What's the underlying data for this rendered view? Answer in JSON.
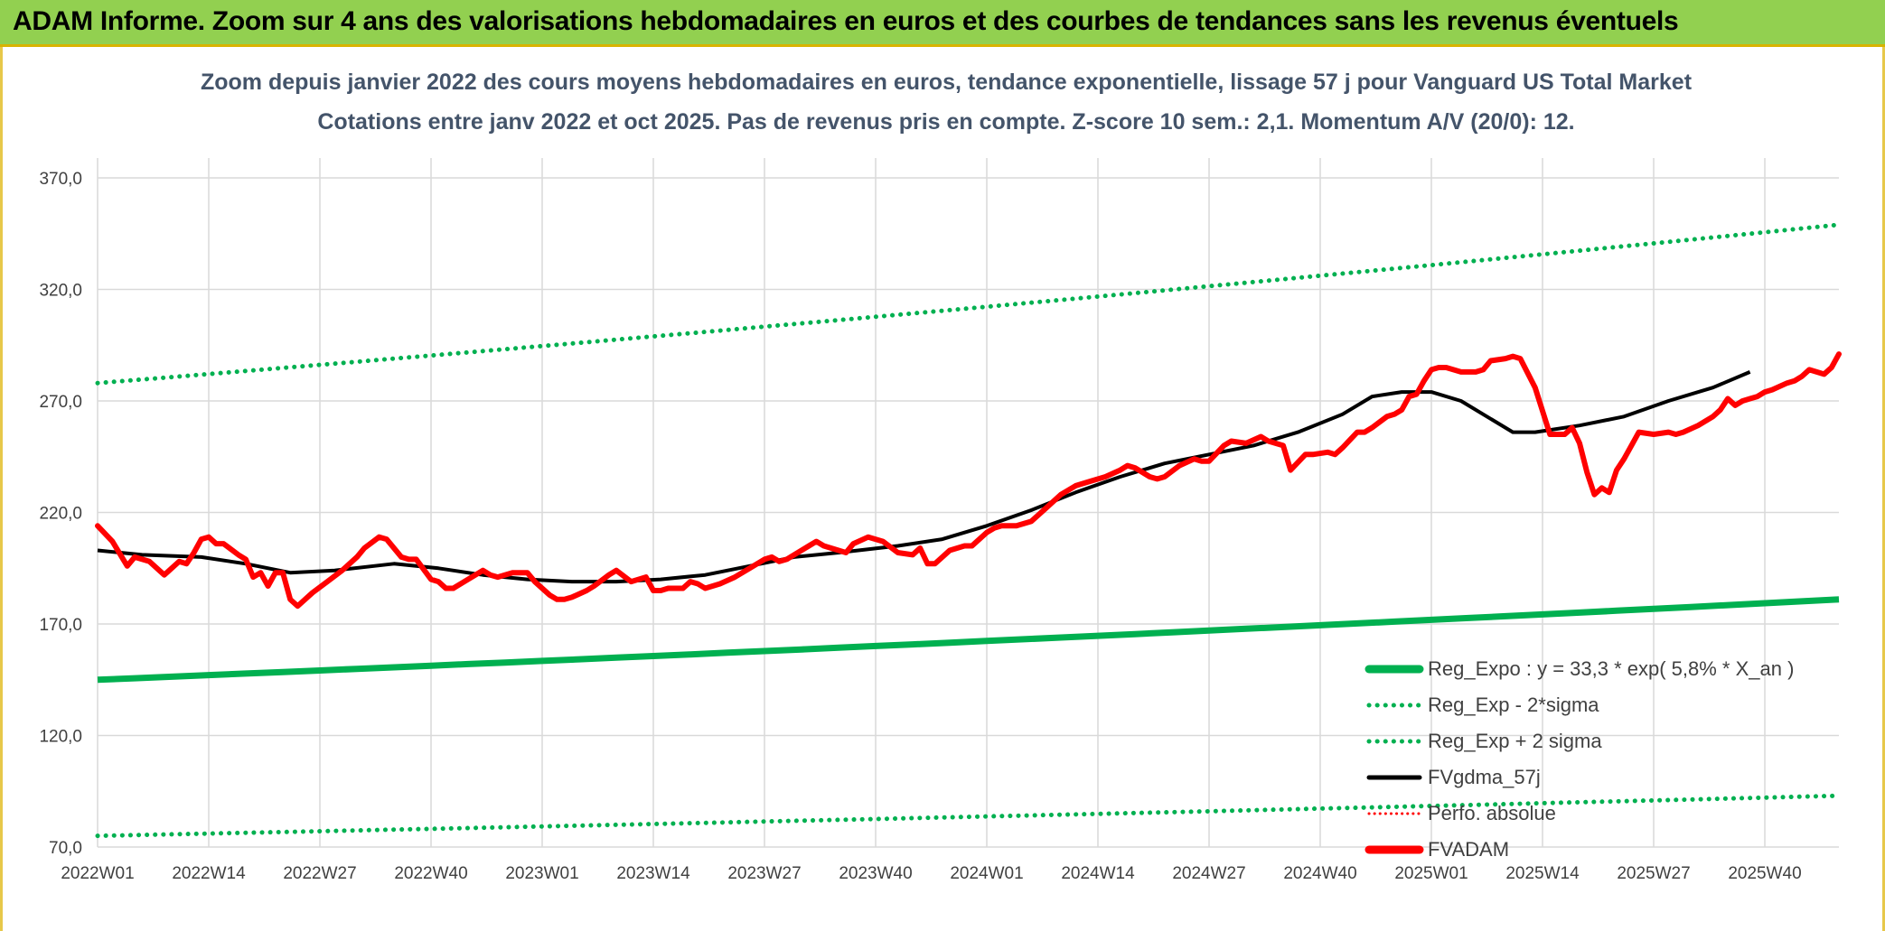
{
  "banner": {
    "text": "ADAM Informe. Zoom sur 4 ans des valorisations hebdomadaires en euros et des courbes de tendances sans les revenus éventuels"
  },
  "colors": {
    "banner_bg": "#92d050",
    "green": "#00b050",
    "red": "#ff0000",
    "black": "#000000",
    "grid": "#d9d9d9"
  },
  "chart_data": {
    "type": "line",
    "title": "Zoom depuis janvier 2022 des cours moyens hebdomadaires en euros, tendance exponentielle, lissage 57 j pour Vanguard US Total Market",
    "subtitle": "Cotations entre janv 2022 et oct 2025. Pas de revenus pris en compte. Z-score 10 sem.: 2,1. Momentum A/V (20/0): 12.",
    "xlabel": "",
    "ylabel": "",
    "ylim": [
      70,
      370
    ],
    "y_ticks": [
      "370,0",
      "320,0",
      "270,0",
      "220,0",
      "170,0",
      "120,0",
      "70,0"
    ],
    "x_ticks": [
      "2022W01",
      "2022W14",
      "2022W27",
      "2022W40",
      "2023W01",
      "2023W14",
      "2023W27",
      "2023W40",
      "2024W01",
      "2024W14",
      "2024W27",
      "2024W40",
      "2025W01",
      "2025W14",
      "2025W27",
      "2025W40"
    ],
    "n_weeks": 197,
    "grid": true,
    "legend_position": "bottom-right",
    "series": [
      {
        "name": "Reg_Expo : y = 33,3 * exp( 5,8% *  X_an )",
        "style": "solid-green-thick",
        "start": 145,
        "end": 181
      },
      {
        "name": "Reg_Exp - 2*sigma",
        "style": "dotted-green",
        "start": 75,
        "end": 93
      },
      {
        "name": "Reg_Exp + 2 sigma",
        "style": "dotted-green",
        "start": 278,
        "end": 349
      },
      {
        "name": "FVgdma_57j",
        "style": "solid-black",
        "points": [
          [
            0,
            203
          ],
          [
            6,
            201
          ],
          [
            14,
            200
          ],
          [
            20,
            197
          ],
          [
            26,
            193
          ],
          [
            32,
            194
          ],
          [
            40,
            197
          ],
          [
            46,
            195
          ],
          [
            52,
            192
          ],
          [
            58,
            190
          ],
          [
            64,
            189
          ],
          [
            70,
            189
          ],
          [
            76,
            190
          ],
          [
            82,
            192
          ],
          [
            88,
            196
          ],
          [
            94,
            200
          ],
          [
            100,
            202
          ],
          [
            108,
            205
          ],
          [
            114,
            208
          ],
          [
            120,
            214
          ],
          [
            126,
            221
          ],
          [
            132,
            229
          ],
          [
            138,
            236
          ],
          [
            144,
            242
          ],
          [
            150,
            246
          ],
          [
            156,
            250
          ],
          [
            162,
            256
          ],
          [
            168,
            264
          ],
          [
            172,
            272
          ],
          [
            176,
            274
          ],
          [
            180,
            274
          ],
          [
            184,
            270
          ],
          [
            188,
            262
          ],
          [
            191,
            256
          ],
          [
            194,
            256
          ],
          [
            200,
            259
          ],
          [
            206,
            263
          ],
          [
            212,
            270
          ],
          [
            218,
            276
          ],
          [
            223,
            283
          ]
        ]
      },
      {
        "name": "Perfo. absolue",
        "style": "dotted-red",
        "points": []
      },
      {
        "name": "FVADAM",
        "style": "solid-red-thick",
        "points": [
          [
            0,
            214
          ],
          [
            2,
            207
          ],
          [
            4,
            196
          ],
          [
            5,
            200
          ],
          [
            7,
            198
          ],
          [
            9,
            192
          ],
          [
            11,
            198
          ],
          [
            12,
            197
          ],
          [
            13,
            202
          ],
          [
            14,
            208
          ],
          [
            15,
            209
          ],
          [
            16,
            206
          ],
          [
            17,
            206
          ],
          [
            19,
            201
          ],
          [
            20,
            199
          ],
          [
            21,
            191
          ],
          [
            22,
            193
          ],
          [
            23,
            187
          ],
          [
            24,
            193
          ],
          [
            25,
            193
          ],
          [
            26,
            181
          ],
          [
            27,
            178
          ],
          [
            29,
            184
          ],
          [
            31,
            189
          ],
          [
            33,
            194
          ],
          [
            35,
            200
          ],
          [
            36,
            204
          ],
          [
            38,
            209
          ],
          [
            39,
            208
          ],
          [
            41,
            200
          ],
          [
            42,
            199
          ],
          [
            43,
            199
          ],
          [
            45,
            190
          ],
          [
            46,
            189
          ],
          [
            47,
            186
          ],
          [
            48,
            186
          ],
          [
            50,
            190
          ],
          [
            52,
            194
          ],
          [
            53,
            192
          ],
          [
            54,
            191
          ],
          [
            56,
            193
          ],
          [
            58,
            193
          ],
          [
            59,
            189
          ],
          [
            61,
            183
          ],
          [
            62,
            181
          ],
          [
            63,
            181
          ],
          [
            64,
            182
          ],
          [
            66,
            185
          ],
          [
            67,
            187
          ],
          [
            69,
            192
          ],
          [
            70,
            194
          ],
          [
            72,
            189
          ],
          [
            73,
            190
          ],
          [
            74,
            191
          ],
          [
            75,
            185
          ],
          [
            76,
            185
          ],
          [
            77,
            186
          ],
          [
            79,
            186
          ],
          [
            80,
            189
          ],
          [
            81,
            188
          ],
          [
            82,
            186
          ],
          [
            84,
            188
          ],
          [
            86,
            191
          ],
          [
            88,
            195
          ],
          [
            90,
            199
          ],
          [
            91,
            200
          ],
          [
            92,
            198
          ],
          [
            93,
            199
          ],
          [
            94,
            201
          ],
          [
            96,
            205
          ],
          [
            97,
            207
          ],
          [
            98,
            205
          ],
          [
            100,
            203
          ],
          [
            101,
            202
          ],
          [
            102,
            206
          ],
          [
            104,
            209
          ],
          [
            106,
            207
          ],
          [
            108,
            202
          ],
          [
            110,
            201
          ],
          [
            111,
            204
          ],
          [
            112,
            197
          ],
          [
            113,
            197
          ],
          [
            115,
            203
          ],
          [
            117,
            205
          ],
          [
            118,
            205
          ],
          [
            120,
            211
          ],
          [
            121,
            213
          ],
          [
            122,
            214
          ],
          [
            124,
            214
          ],
          [
            126,
            216
          ],
          [
            128,
            222
          ],
          [
            130,
            228
          ],
          [
            132,
            232
          ],
          [
            134,
            234
          ],
          [
            136,
            236
          ],
          [
            138,
            239
          ],
          [
            139,
            241
          ],
          [
            140,
            240
          ],
          [
            142,
            236
          ],
          [
            143,
            235
          ],
          [
            144,
            236
          ],
          [
            146,
            241
          ],
          [
            148,
            244
          ],
          [
            149,
            243
          ],
          [
            150,
            243
          ],
          [
            152,
            250
          ],
          [
            153,
            252
          ],
          [
            155,
            251
          ],
          [
            157,
            254
          ],
          [
            158,
            252
          ],
          [
            160,
            250
          ],
          [
            161,
            239
          ],
          [
            163,
            246
          ],
          [
            164,
            246
          ],
          [
            166,
            247
          ],
          [
            167,
            246
          ],
          [
            168,
            249
          ],
          [
            170,
            256
          ],
          [
            171,
            256
          ],
          [
            172,
            258
          ],
          [
            174,
            263
          ],
          [
            175,
            264
          ],
          [
            176,
            266
          ],
          [
            177,
            272
          ],
          [
            178,
            273
          ],
          [
            179,
            279
          ],
          [
            180,
            284
          ],
          [
            181,
            285
          ],
          [
            182,
            285
          ],
          [
            184,
            283
          ],
          [
            186,
            283
          ],
          [
            187,
            284
          ],
          [
            188,
            288
          ],
          [
            190,
            289
          ],
          [
            191,
            290
          ],
          [
            192,
            289
          ],
          [
            194,
            276
          ],
          [
            196,
            255
          ],
          [
            198,
            255
          ],
          [
            199,
            258
          ],
          [
            200,
            251
          ],
          [
            201,
            238
          ],
          [
            202,
            228
          ],
          [
            203,
            231
          ],
          [
            204,
            229
          ],
          [
            205,
            239
          ],
          [
            206,
            244
          ],
          [
            207,
            250
          ],
          [
            208,
            256
          ],
          [
            210,
            255
          ],
          [
            212,
            256
          ],
          [
            213,
            255
          ],
          [
            214,
            256
          ],
          [
            216,
            259
          ],
          [
            218,
            263
          ],
          [
            219,
            266
          ],
          [
            220,
            271
          ],
          [
            221,
            268
          ],
          [
            222,
            270
          ],
          [
            223,
            271
          ],
          [
            224,
            272
          ],
          [
            225,
            274
          ],
          [
            226,
            275
          ],
          [
            228,
            278
          ],
          [
            229,
            279
          ],
          [
            230,
            281
          ],
          [
            231,
            284
          ],
          [
            233,
            282
          ],
          [
            234,
            285
          ],
          [
            235,
            291
          ]
        ]
      }
    ]
  }
}
